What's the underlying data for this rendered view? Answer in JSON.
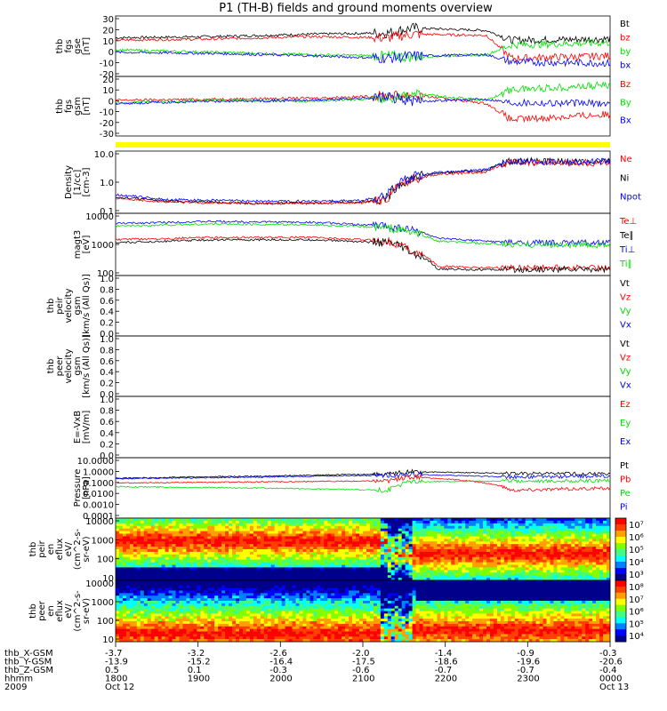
{
  "title": "P1 (TH-B) fields and ground moments overview",
  "colors": {
    "black": "#000000",
    "red": "#ff0000",
    "green": "#00e000",
    "blue": "#0000ff",
    "yellow": "#ffff00"
  },
  "chart_data": [
    {
      "type": "line",
      "panel": "fgs_gse",
      "ylabel": [
        "thb",
        "fgs",
        "gse",
        "[nT]"
      ],
      "yticks": [
        "30",
        "20",
        "10",
        "0",
        "-10",
        "-20"
      ],
      "ylim": [
        -20,
        30
      ],
      "legend": [
        {
          "label": "Bt",
          "color": "#000000"
        },
        {
          "label": "bz",
          "color": "#ff0000"
        },
        {
          "label": "by",
          "color": "#00e000"
        },
        {
          "label": "bx",
          "color": "#0000ff"
        }
      ],
      "series": [
        {
          "name": "Bt",
          "color": "#000000",
          "x": [
            0,
            0.2,
            0.4,
            0.55,
            0.6,
            0.75,
            0.8,
            1
          ],
          "y": [
            12,
            13,
            15,
            16,
            20,
            18,
            10,
            11
          ]
        },
        {
          "name": "bz",
          "color": "#ff0000",
          "x": [
            0,
            0.2,
            0.4,
            0.55,
            0.6,
            0.75,
            0.8,
            1
          ],
          "y": [
            10,
            11,
            13,
            12,
            15,
            14,
            -5,
            -3
          ]
        },
        {
          "name": "by",
          "color": "#00e000",
          "x": [
            0,
            0.2,
            0.4,
            0.55,
            0.6,
            0.75,
            0.8,
            1
          ],
          "y": [
            2,
            0,
            -2,
            -3,
            -4,
            -2,
            6,
            8
          ]
        },
        {
          "name": "bx",
          "color": "#0000ff",
          "x": [
            0,
            0.2,
            0.4,
            0.55,
            0.6,
            0.75,
            0.8,
            1
          ],
          "y": [
            0,
            -1,
            -3,
            -5,
            -3,
            -2,
            -8,
            -9
          ]
        }
      ]
    },
    {
      "type": "line",
      "panel": "fgs_gsm",
      "ylabel": [
        "thb",
        "fgs",
        "gsm",
        "[nT]"
      ],
      "yticks": [
        "20",
        "10",
        "0",
        "-10",
        "-20",
        "-30"
      ],
      "ylim": [
        -35,
        20
      ],
      "legend": [
        {
          "label": "Bz",
          "color": "#ff0000"
        },
        {
          "label": "By",
          "color": "#00e000"
        },
        {
          "label": "Bx",
          "color": "#0000ff"
        }
      ],
      "series": [
        {
          "name": "Bz",
          "color": "#ff0000",
          "x": [
            0,
            0.2,
            0.4,
            0.55,
            0.6,
            0.75,
            0.8,
            1
          ],
          "y": [
            -2,
            -1,
            0,
            2,
            3,
            -5,
            -20,
            -15
          ]
        },
        {
          "name": "By",
          "color": "#00e000",
          "x": [
            0,
            0.2,
            0.4,
            0.55,
            0.6,
            0.75,
            0.8,
            1
          ],
          "y": [
            -4,
            -2,
            -3,
            0,
            4,
            -2,
            8,
            12
          ]
        },
        {
          "name": "Bx",
          "color": "#0000ff",
          "x": [
            0,
            0.2,
            0.4,
            0.55,
            0.6,
            0.75,
            0.8,
            1
          ],
          "y": [
            -5,
            -3,
            -2,
            1,
            -3,
            -1,
            -4,
            -5
          ]
        }
      ]
    },
    {
      "type": "bar",
      "panel": "mode_bar",
      "color": "#ffff00"
    },
    {
      "type": "line",
      "panel": "density",
      "log": true,
      "ylabel": [
        "Density",
        "[1/cc]",
        "[cm-3]"
      ],
      "yticks": [
        "10.0",
        "1.0",
        "0.1"
      ],
      "ylim": [
        0.1,
        30
      ],
      "legend": [
        {
          "label": "Ne",
          "color": "#ff0000"
        },
        {
          "label": "Ni",
          "color": "#000000"
        },
        {
          "label": "Npot",
          "color": "#0000ff"
        }
      ],
      "series": [
        {
          "name": "Ni",
          "color": "#000000",
          "x": [
            0,
            0.1,
            0.3,
            0.5,
            0.55,
            0.6,
            0.65,
            0.75,
            0.8,
            1
          ],
          "y": [
            0.45,
            0.3,
            0.25,
            0.28,
            0.4,
            2.5,
            4,
            5,
            12,
            11
          ]
        },
        {
          "name": "Ne",
          "color": "#ff0000",
          "x": [
            0,
            0.1,
            0.3,
            0.5,
            0.55,
            0.6,
            0.65,
            0.75,
            0.8,
            1
          ],
          "y": [
            0.4,
            0.28,
            0.24,
            0.26,
            0.35,
            2.2,
            3.5,
            4.5,
            11,
            10
          ]
        },
        {
          "name": "Npot",
          "color": "#0000ff",
          "x": [
            0,
            0.1,
            0.3,
            0.5,
            0.55,
            0.6,
            0.65,
            0.75,
            0.8,
            1
          ],
          "y": [
            0.55,
            0.35,
            0.3,
            0.32,
            0.5,
            2.8,
            4.2,
            5.5,
            12,
            11
          ]
        }
      ]
    },
    {
      "type": "line",
      "panel": "temperature",
      "log": true,
      "ylabel": [
        "magt3",
        "[eV]"
      ],
      "yticks": [
        "10000",
        "1000",
        "100"
      ],
      "ylim": [
        15,
        12000
      ],
      "legend": [
        {
          "label": "Te⊥",
          "color": "#ff0000"
        },
        {
          "label": "Te∥",
          "color": "#000000"
        },
        {
          "label": "Ti⊥",
          "color": "#0000ff"
        },
        {
          "label": "Ti∥",
          "color": "#00e000"
        }
      ],
      "series": [
        {
          "name": "Ti⊥",
          "color": "#0000ff",
          "x": [
            0,
            0.2,
            0.4,
            0.55,
            0.6,
            0.65,
            0.75,
            0.8,
            1
          ],
          "y": [
            4000,
            5000,
            4500,
            3000,
            2000,
            800,
            600,
            500,
            500
          ]
        },
        {
          "name": "Ti∥",
          "color": "#00e000",
          "x": [
            0,
            0.2,
            0.4,
            0.55,
            0.6,
            0.65,
            0.75,
            0.8,
            1
          ],
          "y": [
            3000,
            3800,
            3500,
            2500,
            1500,
            600,
            450,
            400,
            400
          ]
        },
        {
          "name": "Te⊥",
          "color": "#ff0000",
          "x": [
            0,
            0.2,
            0.4,
            0.55,
            0.6,
            0.65,
            0.75,
            0.8,
            1
          ],
          "y": [
            700,
            900,
            900,
            600,
            200,
            40,
            35,
            35,
            35
          ]
        },
        {
          "name": "Te∥",
          "color": "#000000",
          "x": [
            0,
            0.2,
            0.4,
            0.55,
            0.6,
            0.65,
            0.75,
            0.8,
            1
          ],
          "y": [
            500,
            700,
            700,
            500,
            150,
            30,
            28,
            28,
            30
          ]
        }
      ]
    },
    {
      "type": "line",
      "panel": "peir_velocity",
      "ylabel": [
        "thb",
        "peir",
        "velocity",
        "gsm",
        "[km/s (All Qs)]"
      ],
      "yticks": [
        "1.0",
        "0.8",
        "0.6",
        "0.4",
        "0.2",
        "0.0"
      ],
      "ylim": [
        0,
        1
      ],
      "legend": [
        {
          "label": "Vt",
          "color": "#000000"
        },
        {
          "label": "Vz",
          "color": "#ff0000"
        },
        {
          "label": "Vy",
          "color": "#00e000"
        },
        {
          "label": "Vx",
          "color": "#0000ff"
        }
      ],
      "series": []
    },
    {
      "type": "line",
      "panel": "peer_velocity",
      "ylabel": [
        "thb",
        "peer",
        "velocity",
        "gsm",
        "[km/s (All Qs)]"
      ],
      "yticks": [
        "1.0",
        "0.8",
        "0.6",
        "0.4",
        "0.2",
        "0.0"
      ],
      "ylim": [
        0,
        1
      ],
      "legend": [
        {
          "label": "Vt",
          "color": "#000000"
        },
        {
          "label": "Vz",
          "color": "#ff0000"
        },
        {
          "label": "Vy",
          "color": "#00e000"
        },
        {
          "label": "Vx",
          "color": "#0000ff"
        }
      ],
      "series": []
    },
    {
      "type": "line",
      "panel": "efield",
      "ylabel": [
        "E=-VxB",
        "[mV/m]"
      ],
      "yticks": [
        "1.0",
        "0.8",
        "0.6",
        "0.4",
        "0.2",
        "0.0"
      ],
      "ylim": [
        0,
        1
      ],
      "legend": [
        {
          "label": "Ez",
          "color": "#ff0000"
        },
        {
          "label": "Ey",
          "color": "#00e000"
        },
        {
          "label": "Ex",
          "color": "#0000ff"
        }
      ],
      "series": []
    },
    {
      "type": "line",
      "panel": "pressure",
      "log": true,
      "ylabel": [
        "Pressure",
        "[nPa]"
      ],
      "yticks": [
        "10.0000",
        "1.0000",
        "0.1000",
        "0.0100",
        "0.0010",
        "0.0001"
      ],
      "ylim": [
        0.0001,
        10
      ],
      "legend": [
        {
          "label": "Pt",
          "color": "#000000"
        },
        {
          "label": "Pb",
          "color": "#ff0000"
        },
        {
          "label": "Pe",
          "color": "#00e000"
        },
        {
          "label": "Pi",
          "color": "#0000ff"
        }
      ],
      "series": [
        {
          "name": "Pt",
          "color": "#000000",
          "x": [
            0,
            0.3,
            0.55,
            0.6,
            0.8,
            1
          ],
          "y": [
            0.2,
            0.3,
            0.45,
            0.7,
            0.5,
            0.45
          ]
        },
        {
          "name": "Pi",
          "color": "#0000ff",
          "x": [
            0,
            0.3,
            0.55,
            0.6,
            0.8,
            1
          ],
          "y": [
            0.18,
            0.25,
            0.35,
            0.4,
            0.25,
            0.3
          ]
        },
        {
          "name": "Pb",
          "color": "#ff0000",
          "x": [
            0,
            0.3,
            0.55,
            0.6,
            0.8,
            1
          ],
          "y": [
            0.08,
            0.1,
            0.12,
            0.25,
            0.02,
            0.03
          ]
        },
        {
          "name": "Pe",
          "color": "#00e000",
          "x": [
            0,
            0.3,
            0.55,
            0.6,
            0.8,
            1
          ],
          "y": [
            0.04,
            0.03,
            0.02,
            0.1,
            0.12,
            0.12
          ]
        }
      ]
    },
    {
      "type": "heatmap",
      "panel": "peir_spectrogram",
      "ylabel": [
        "thb",
        "peir",
        "en",
        "eflux",
        "eV/",
        "(cm^2-s-",
        "sr-eV)"
      ],
      "yticks": [
        "10000",
        "1000",
        "100",
        "10"
      ],
      "colorbar": [
        "10⁷",
        "10⁶",
        "10⁵",
        "10⁴",
        "10³"
      ]
    },
    {
      "type": "heatmap",
      "panel": "peer_spectrogram",
      "ylabel": [
        "thb",
        "peer",
        "en",
        "eflux",
        "eV/",
        "(cm^2-s-",
        "sr-eV)"
      ],
      "yticks": [
        "10000",
        "1000",
        "100",
        "10"
      ],
      "colorbar": [
        "10⁸",
        "10⁷",
        "10⁶",
        "10⁵",
        "10⁴"
      ]
    }
  ],
  "x_axis": {
    "rows": [
      {
        "name": "thb_X-GSM",
        "values": [
          "-3.7",
          "-3.2",
          "-2.6",
          "-2.0",
          "-1.4",
          "-0.9",
          "-0.3"
        ]
      },
      {
        "name": "thb_Y-GSM",
        "values": [
          "-13.9",
          "-15.2",
          "-16.4",
          "-17.5",
          "-18.6",
          "-19.6",
          "-20.6"
        ]
      },
      {
        "name": "thb_Z-GSM",
        "values": [
          "0.5",
          "0.1",
          "-0.3",
          "-0.6",
          "-0.7",
          "-0.7",
          "-0.4"
        ]
      },
      {
        "name": "hhmm",
        "values": [
          "1800",
          "1900",
          "2000",
          "2100",
          "2200",
          "2300",
          "0000"
        ]
      },
      {
        "name": "2009",
        "values": [
          "Oct 12",
          "",
          "",
          "",
          "",
          "",
          "Oct 13"
        ]
      }
    ]
  }
}
